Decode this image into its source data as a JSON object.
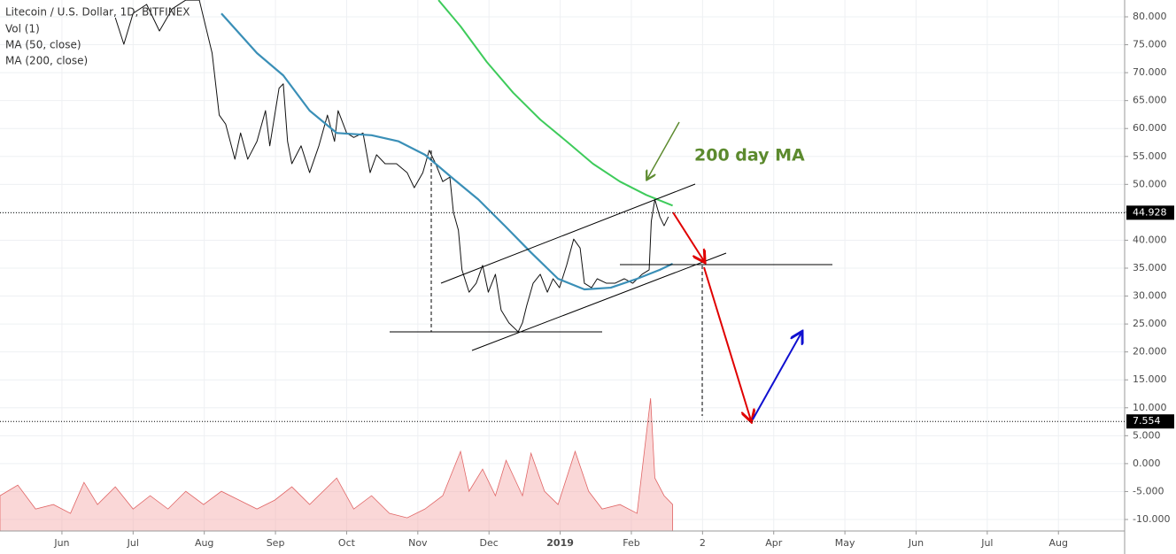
{
  "chart_data": {
    "type": "line",
    "title": "Litecoin / U.S. Dollar, 1D, BITFINEX",
    "legend_items": [
      "Vol (1)",
      "MA (50, close)",
      "MA (200, close)"
    ],
    "annotation": "200 day MA",
    "grid": true,
    "xlim": [
      0.13,
      15.93
    ],
    "xticks": [
      {
        "value": 1,
        "label": "Jun"
      },
      {
        "value": 2,
        "label": "Jul"
      },
      {
        "value": 3,
        "label": "Aug"
      },
      {
        "value": 4,
        "label": "Sep"
      },
      {
        "value": 5,
        "label": "Oct"
      },
      {
        "value": 6,
        "label": "Nov"
      },
      {
        "value": 7,
        "label": "Dec"
      },
      {
        "value": 8,
        "label": "2019"
      },
      {
        "value": 9,
        "label": "Feb"
      },
      {
        "value": 10,
        "label": "2"
      },
      {
        "value": 11,
        "label": "Apr"
      },
      {
        "value": 12,
        "label": "May"
      },
      {
        "value": 13,
        "label": "Jun"
      },
      {
        "value": 14,
        "label": "Jul"
      },
      {
        "value": 15,
        "label": "Aug"
      }
    ],
    "ylim": [
      -12.06,
      83.01
    ],
    "yticks": [
      {
        "value": 80,
        "label": "80.000"
      },
      {
        "value": 75,
        "label": "75.000"
      },
      {
        "value": 70,
        "label": "70.000"
      },
      {
        "value": 65,
        "label": "65.000"
      },
      {
        "value": 60,
        "label": "60.000"
      },
      {
        "value": 55,
        "label": "55.000"
      },
      {
        "value": 50,
        "label": "50.000"
      },
      {
        "value": 45,
        "label": "45.000"
      },
      {
        "value": 40,
        "label": "40.000"
      },
      {
        "value": 35,
        "label": "35.000"
      },
      {
        "value": 30,
        "label": "30.000"
      },
      {
        "value": 25,
        "label": "25.000"
      },
      {
        "value": 20,
        "label": "20.000"
      },
      {
        "value": 15,
        "label": "15.000"
      },
      {
        "value": 10,
        "label": "10.000"
      },
      {
        "value": 5,
        "label": "5.000"
      },
      {
        "value": 0,
        "label": "0.000"
      },
      {
        "value": -5,
        "label": "-5.000"
      },
      {
        "value": -10,
        "label": "-10.000"
      }
    ],
    "price_levels": [
      44.928,
      7.554
    ],
    "series": [
      {
        "name": "Vol (1)",
        "color": "#f4a6a6",
        "fill": true,
        "x": [
          0.13,
          0.38,
          0.63,
          0.88,
          1.12,
          1.31,
          1.5,
          1.75,
          2.0,
          2.24,
          2.49,
          2.74,
          2.99,
          3.24,
          3.49,
          3.74,
          3.99,
          4.23,
          4.48,
          4.86,
          5.1,
          5.35,
          5.6,
          5.85,
          6.1,
          6.35,
          6.6,
          6.72,
          6.91,
          7.09,
          7.24,
          7.47,
          7.59,
          7.78,
          7.97,
          8.21,
          8.4,
          8.59,
          8.84,
          9.08,
          9.27,
          9.33,
          9.46,
          9.58
        ],
        "values": [
          -5.74,
          -3.84,
          -8.12,
          -7.32,
          -8.9,
          -3.36,
          -7.32,
          -4.15,
          -8.12,
          -5.74,
          -8.12,
          -4.95,
          -7.32,
          -4.95,
          -6.53,
          -8.12,
          -6.53,
          -4.15,
          -7.32,
          -2.57,
          -8.12,
          -5.74,
          -8.9,
          -9.7,
          -8.12,
          -5.74,
          2.19,
          -4.95,
          -0.98,
          -5.74,
          0.6,
          -5.74,
          1.87,
          -4.95,
          -7.32,
          2.19,
          -4.95,
          -8.12,
          -7.32,
          -8.9,
          11.7,
          -2.57,
          -5.74,
          -7.32
        ]
      },
      {
        "name": "Litecoin / U.S. Dollar",
        "color": "#111111",
        "x": [
          1.75,
          1.87,
          2.0,
          2.19,
          2.37,
          2.55,
          2.74,
          2.93,
          3.11,
          3.21,
          3.3,
          3.43,
          3.51,
          3.61,
          3.74,
          3.86,
          3.92,
          4.05,
          4.11,
          4.17,
          4.23,
          4.36,
          4.48,
          4.61,
          4.73,
          4.83,
          4.88,
          5.0,
          5.1,
          5.23,
          5.33,
          5.42,
          5.54,
          5.7,
          5.85,
          5.95,
          6.07,
          6.16,
          6.25,
          6.35,
          6.45,
          6.5,
          6.57,
          6.62,
          6.72,
          6.82,
          6.91,
          6.99,
          7.09,
          7.17,
          7.28,
          7.41,
          7.47,
          7.53,
          7.62,
          7.72,
          7.82,
          7.9,
          7.99,
          8.09,
          8.19,
          8.28,
          8.34,
          8.44,
          8.52,
          8.65,
          8.77,
          8.9,
          9.02,
          9.15,
          9.25,
          9.28,
          9.33,
          9.4,
          9.46,
          9.52
        ],
        "values": [
          79.84,
          75.09,
          80.63,
          82.22,
          77.46,
          81.43,
          83.0,
          83.0,
          73.5,
          62.4,
          60.8,
          54.5,
          59.2,
          54.5,
          57.7,
          63.2,
          56.9,
          67.2,
          68.0,
          57.7,
          53.7,
          56.9,
          52.1,
          56.9,
          62.4,
          57.7,
          63.2,
          59.2,
          58.4,
          59.2,
          52.1,
          55.3,
          53.7,
          53.7,
          52.1,
          49.4,
          52.1,
          56.1,
          53.7,
          50.5,
          51.3,
          45.0,
          41.8,
          34.7,
          30.7,
          32.3,
          35.5,
          30.7,
          33.9,
          27.5,
          25.2,
          23.6,
          25.2,
          28.3,
          32.3,
          33.9,
          30.7,
          33.1,
          31.5,
          35.5,
          40.2,
          38.6,
          32.3,
          31.5,
          33.1,
          32.3,
          32.3,
          33.1,
          32.3,
          33.9,
          34.7,
          43.4,
          47.3,
          44.2,
          42.6,
          44.2
        ]
      },
      {
        "name": "MA (50, close)",
        "color": "#3a8fb7",
        "width": 2.2,
        "x": [
          3.24,
          3.74,
          4.11,
          4.48,
          4.86,
          5.35,
          5.73,
          6.1,
          6.47,
          6.85,
          7.22,
          7.59,
          7.97,
          8.34,
          8.71,
          9.08,
          9.4,
          9.58
        ],
        "values": [
          80.6,
          73.5,
          69.5,
          63.2,
          59.2,
          58.8,
          57.7,
          55.3,
          51.3,
          47.3,
          42.6,
          37.8,
          33.1,
          31.2,
          31.5,
          33.1,
          34.7,
          35.8
        ]
      },
      {
        "name": "MA (200, close)",
        "color": "#3ecb5b",
        "width": 2,
        "x": [
          6.29,
          6.6,
          6.97,
          7.34,
          7.72,
          8.09,
          8.46,
          8.84,
          9.21,
          9.58
        ],
        "values": [
          83.0,
          78.3,
          71.9,
          66.4,
          61.6,
          57.7,
          53.7,
          50.5,
          48.1,
          46.2
        ]
      }
    ]
  }
}
